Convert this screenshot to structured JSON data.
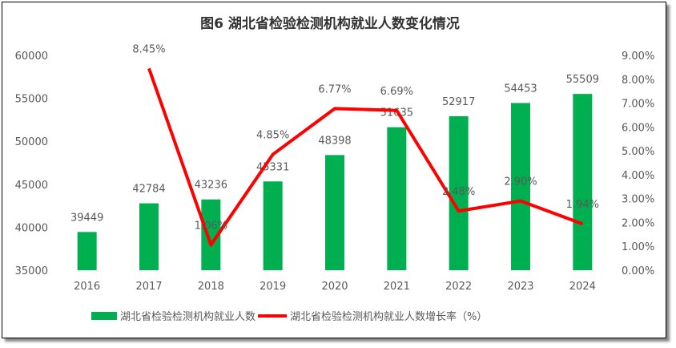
{
  "chart_data": {
    "type": "bar+line",
    "title": "图6  湖北省检验检测机构就业人数变化情况",
    "categories": [
      "2016",
      "2017",
      "2018",
      "2019",
      "2020",
      "2021",
      "2022",
      "2023",
      "2024"
    ],
    "series": [
      {
        "name": "湖北省检验检测机构就业人数",
        "type": "bar",
        "axis": "left",
        "color": "#00B050",
        "values": [
          39449,
          42784,
          43236,
          45331,
          48398,
          51635,
          52917,
          54453,
          55509
        ],
        "labels": [
          "39449",
          "42784",
          "43236",
          "45331",
          "48398",
          "51635",
          "52917",
          "54453",
          "55509"
        ]
      },
      {
        "name": "湖北省检验检测机构就业人数增长率（%）",
        "type": "line",
        "axis": "right",
        "color": "#FF0000",
        "values": [
          null,
          8.45,
          1.06,
          4.85,
          6.77,
          6.69,
          2.48,
          2.9,
          1.94
        ],
        "labels": [
          "",
          "8.45%",
          "1.06%",
          "4.85%",
          "6.77%",
          "6.69%",
          "2.48%",
          "2.90%",
          "1.94%"
        ]
      }
    ],
    "ylim_left": [
      35000,
      60000
    ],
    "yticks_left": [
      "35000",
      "40000",
      "45000",
      "50000",
      "55000",
      "60000"
    ],
    "ylim_right": [
      0,
      9
    ],
    "yticks_right": [
      "0.00%",
      "1.00%",
      "2.00%",
      "3.00%",
      "4.00%",
      "5.00%",
      "6.00%",
      "7.00%",
      "8.00%",
      "9.00%"
    ],
    "grid": false,
    "legend": "bottom"
  }
}
